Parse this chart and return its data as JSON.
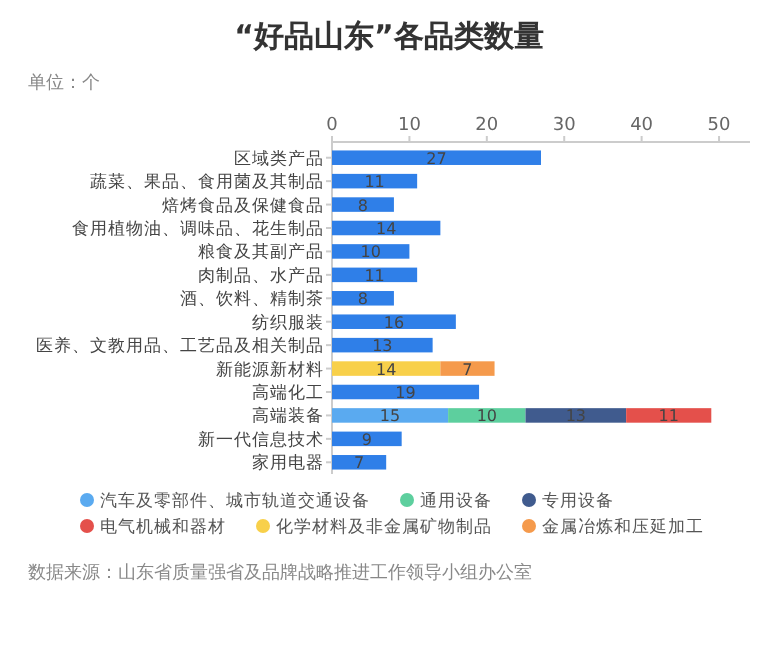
{
  "chart_data": {
    "type": "bar",
    "orientation": "horizontal",
    "stacked": true,
    "title": "“好品山东”各品类数量",
    "annotations": [
      "单位：个",
      "数据来源：山东省质量强省及品牌战略推进工作领导小组办公室"
    ],
    "categories": [
      "区域类产品",
      "蔬菜、果品、食用菌及其制品",
      "焙烤食品及保健食品",
      "食用植物油、调味品、花生制品",
      "粮食及其副产品",
      "肉制品、水产品",
      "酒、饮料、精制茶",
      "纺织服装",
      "医养、文教用品、工艺品及相关制品",
      "新能源新材料",
      "高端化工",
      "高端装备",
      "新一代信息技术",
      "家用电器"
    ],
    "series": [
      {
        "color": "#2f7fe8",
        "values": [
          27,
          11,
          8,
          14,
          10,
          11,
          8,
          16,
          13,
          null,
          19,
          null,
          9,
          7
        ]
      },
      {
        "name": "汽车及零部件、城市轨道交通设备",
        "color": "#5aaaf0",
        "values": [
          null,
          null,
          null,
          null,
          null,
          null,
          null,
          null,
          null,
          null,
          null,
          15,
          null,
          null
        ]
      },
      {
        "name": "通用设备",
        "color": "#5dcf9e",
        "values": [
          null,
          null,
          null,
          null,
          null,
          null,
          null,
          null,
          null,
          null,
          null,
          10,
          null,
          null
        ]
      },
      {
        "name": "专用设备",
        "color": "#405b8e",
        "values": [
          null,
          null,
          null,
          null,
          null,
          null,
          null,
          null,
          null,
          null,
          null,
          13,
          null,
          null
        ]
      },
      {
        "name": "电气机械和器材",
        "color": "#e4504b",
        "values": [
          null,
          null,
          null,
          null,
          null,
          null,
          null,
          null,
          null,
          null,
          null,
          11,
          null,
          null
        ]
      },
      {
        "name": "化学材料及非金属矿物制品",
        "color": "#f8d04a",
        "values": [
          null,
          null,
          null,
          null,
          null,
          null,
          null,
          null,
          null,
          14,
          null,
          null,
          null,
          null
        ]
      },
      {
        "name": "金属冶炼和压延加工",
        "color": "#f59a4c",
        "values": [
          null,
          null,
          null,
          null,
          null,
          null,
          null,
          null,
          null,
          7,
          null,
          null,
          null,
          null
        ]
      }
    ],
    "xlim": [
      0,
      54
    ],
    "xticks": [
      0,
      10,
      20,
      30,
      40,
      50
    ],
    "data_labels": true,
    "legend": "bottom"
  }
}
